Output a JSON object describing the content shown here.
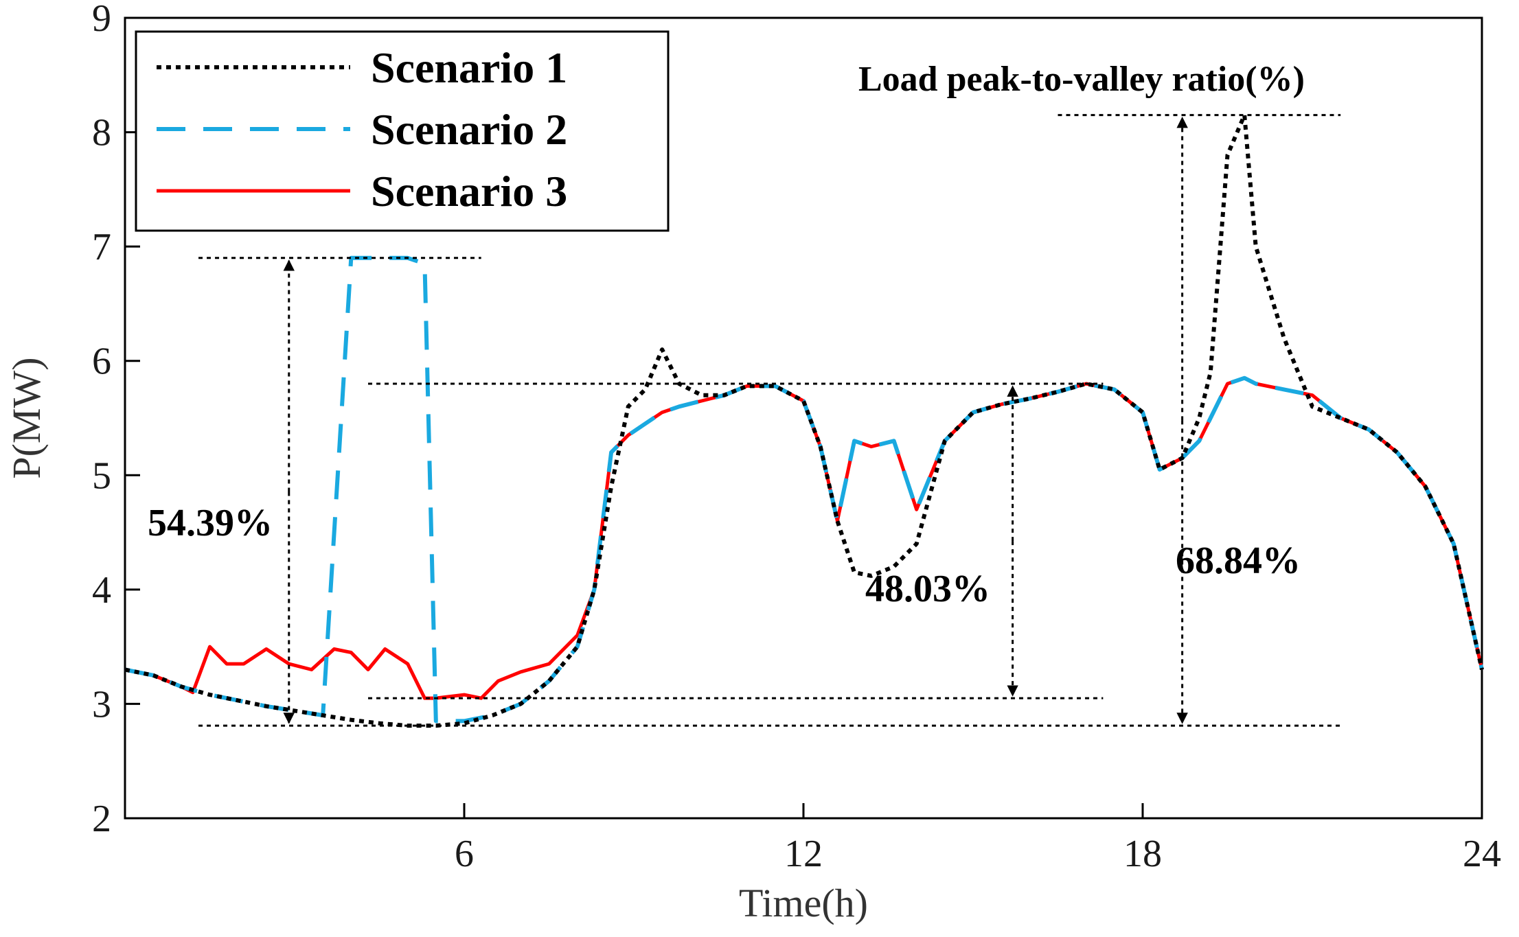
{
  "colors": {
    "scenario1": "#000000",
    "scenario2": "#1aa9e0",
    "scenario3": "#ff0000",
    "axis": "#000000"
  },
  "chart_data": {
    "type": "line",
    "title": "",
    "xlabel": "Time(h)",
    "ylabel": "P(MW)",
    "xlim": [
      0,
      24
    ],
    "ylim": [
      2,
      9
    ],
    "xticks": [
      6,
      12,
      18,
      24
    ],
    "yticks": [
      2,
      3,
      4,
      5,
      6,
      7,
      8,
      9
    ],
    "grid": false,
    "legend_position": "top-left",
    "series": [
      {
        "name": "Scenario 1",
        "style": "dotted",
        "color": "#000000",
        "x": [
          0,
          0.5,
          1,
          1.5,
          2,
          2.5,
          3,
          3.5,
          4,
          4.5,
          5,
          5.5,
          6,
          6.5,
          7,
          7.5,
          8,
          8.3,
          8.6,
          8.9,
          9.2,
          9.5,
          9.8,
          10.2,
          10.6,
          11,
          11.5,
          12,
          12.3,
          12.6,
          12.9,
          13.2,
          13.6,
          14,
          14.5,
          15,
          15.5,
          16,
          16.5,
          17,
          17.5,
          18,
          18.3,
          18.7,
          19,
          19.2,
          19.5,
          19.8,
          20,
          20.5,
          21,
          21.5,
          22,
          22.5,
          23,
          23.5,
          24
        ],
        "y": [
          3.3,
          3.25,
          3.15,
          3.08,
          3.03,
          2.98,
          2.94,
          2.9,
          2.86,
          2.83,
          2.81,
          2.81,
          2.83,
          2.9,
          3.0,
          3.2,
          3.5,
          4.0,
          4.9,
          5.6,
          5.75,
          6.1,
          5.8,
          5.7,
          5.7,
          5.78,
          5.78,
          5.65,
          5.25,
          4.6,
          4.15,
          4.12,
          4.2,
          4.4,
          5.3,
          5.55,
          5.62,
          5.67,
          5.73,
          5.8,
          5.75,
          5.55,
          5.05,
          5.15,
          5.5,
          5.9,
          7.8,
          8.15,
          7.0,
          6.2,
          5.6,
          5.5,
          5.4,
          5.2,
          4.9,
          4.4,
          3.3
        ]
      },
      {
        "name": "Scenario 2",
        "style": "dashed",
        "color": "#1aa9e0",
        "x": [
          0,
          0.5,
          1,
          1.5,
          2,
          2.5,
          3,
          3.5,
          4,
          4.5,
          4.9,
          5,
          5.3,
          5.5,
          6,
          6.5,
          7,
          7.5,
          8,
          8.3,
          8.6,
          8.9,
          9.2,
          9.5,
          9.8,
          10.2,
          10.6,
          11,
          11.5,
          12,
          12.3,
          12.6,
          12.9,
          13.2,
          13.6,
          14,
          14.5,
          15,
          15.5,
          16,
          16.5,
          17,
          17.5,
          18,
          18.3,
          18.7,
          19,
          19.2,
          19.5,
          19.8,
          20,
          20.5,
          21,
          21.5,
          22,
          22.5,
          23,
          23.5,
          24
        ],
        "y": [
          3.3,
          3.25,
          3.15,
          3.08,
          3.03,
          2.98,
          2.94,
          2.9,
          6.9,
          6.9,
          6.9,
          6.9,
          6.85,
          2.85,
          2.85,
          2.9,
          3.0,
          3.2,
          3.5,
          4.0,
          5.2,
          5.35,
          5.45,
          5.55,
          5.6,
          5.65,
          5.7,
          5.78,
          5.78,
          5.65,
          5.25,
          4.6,
          5.3,
          5.25,
          5.3,
          4.7,
          5.3,
          5.55,
          5.62,
          5.67,
          5.73,
          5.8,
          5.75,
          5.55,
          5.05,
          5.15,
          5.3,
          5.5,
          5.8,
          5.85,
          5.8,
          5.75,
          5.7,
          5.5,
          5.4,
          5.2,
          4.9,
          4.4,
          3.3
        ]
      },
      {
        "name": "Scenario 3",
        "style": "solid",
        "color": "#ff0000",
        "x": [
          0,
          0.5,
          1,
          1.2,
          1.5,
          1.8,
          2.1,
          2.5,
          2.9,
          3.3,
          3.7,
          4.0,
          4.3,
          4.6,
          5.0,
          5.3,
          5.5,
          6,
          6.3,
          6.6,
          7,
          7.5,
          8,
          8.3,
          8.6,
          8.9,
          9.2,
          9.5,
          9.8,
          10.2,
          10.6,
          11,
          11.5,
          12,
          12.3,
          12.6,
          12.9,
          13.2,
          13.6,
          14,
          14.5,
          15,
          15.5,
          16,
          16.5,
          17,
          17.5,
          18,
          18.3,
          18.7,
          19,
          19.2,
          19.5,
          19.8,
          20,
          20.5,
          21,
          21.5,
          22,
          22.5,
          23,
          23.5,
          24
        ],
        "y": [
          3.3,
          3.25,
          3.15,
          3.1,
          3.5,
          3.35,
          3.35,
          3.48,
          3.35,
          3.3,
          3.48,
          3.45,
          3.3,
          3.48,
          3.35,
          3.05,
          3.05,
          3.08,
          3.05,
          3.2,
          3.28,
          3.35,
          3.6,
          4.0,
          5.2,
          5.35,
          5.45,
          5.55,
          5.6,
          5.65,
          5.7,
          5.78,
          5.78,
          5.65,
          5.25,
          4.6,
          5.3,
          5.25,
          5.3,
          4.7,
          5.3,
          5.55,
          5.62,
          5.67,
          5.73,
          5.8,
          5.75,
          5.55,
          5.05,
          5.15,
          5.3,
          5.5,
          5.8,
          5.85,
          5.8,
          5.75,
          5.7,
          5.5,
          5.4,
          5.2,
          4.9,
          4.4,
          3.3
        ]
      }
    ],
    "annotations": {
      "title": "Load peak-to-valley ratio(%)",
      "ratios": [
        {
          "label": "54.39%",
          "x": 2.9,
          "peak": 6.9,
          "valley": 2.81,
          "line_from": 1.3,
          "line_to": 6.3
        },
        {
          "label": "48.03%",
          "x": 15.7,
          "peak": 5.8,
          "valley": 3.05,
          "line_from": 4.3,
          "line_to": 17.3
        },
        {
          "label": "68.84%",
          "x": 18.7,
          "peak": 8.15,
          "valley": 2.81,
          "line_from": 16.5,
          "line_to": 21.5
        }
      ]
    }
  }
}
